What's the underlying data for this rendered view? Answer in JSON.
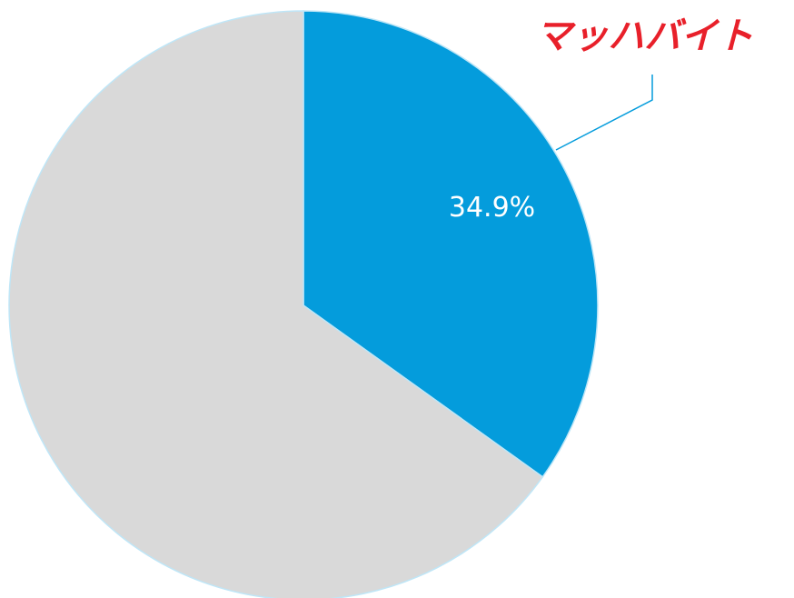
{
  "chart_data": {
    "type": "pie",
    "categories": [
      "マッハバイト",
      null
    ],
    "values": [
      34.9,
      65.1
    ],
    "value_labels": [
      "34.9%",
      null
    ],
    "colors": [
      "#049cdc",
      "#d9d9d9"
    ]
  }
}
